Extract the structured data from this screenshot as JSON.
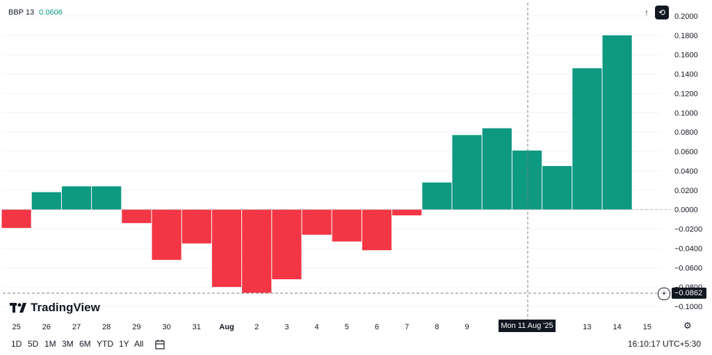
{
  "legend": {
    "name": "BBP 13",
    "value": "0.0606"
  },
  "logo": {
    "text": "TradingView"
  },
  "price_label": "−0.0862",
  "crosshair_date": "Mon 11 Aug '25",
  "timeframes": [
    "1D",
    "5D",
    "1M",
    "3M",
    "6M",
    "YTD",
    "1Y",
    "All"
  ],
  "clock": "16:10:17 UTC+5:30",
  "icons": {
    "arrow": "arrow-up-icon",
    "toggle": "toggle-icon",
    "calendar": "calendar-icon",
    "settings": "gear-icon",
    "plus": "plus-icon"
  },
  "colors": {
    "positive": "#0e9981",
    "negative": "#f23645",
    "text": "#131722"
  },
  "chart_data": {
    "type": "bar",
    "categories": [
      "25",
      "26",
      "27",
      "28",
      "29",
      "30",
      "31",
      "Aug",
      "2",
      "3",
      "4",
      "5",
      "6",
      "7",
      "8",
      "9",
      "10",
      "11",
      "12",
      "13",
      "14"
    ],
    "values": [
      -0.019,
      0.018,
      0.024,
      0.024,
      -0.014,
      -0.052,
      -0.035,
      -0.08,
      -0.086,
      -0.072,
      -0.026,
      -0.033,
      -0.042,
      -0.006,
      0.028,
      0.077,
      0.084,
      0.061,
      0.045,
      0.146,
      0.18
    ],
    "x_tick_labels": [
      "25",
      "26",
      "27",
      "28",
      "29",
      "30",
      "31",
      "Aug",
      "2",
      "3",
      "4",
      "5",
      "6",
      "7",
      "8",
      "9",
      "",
      "",
      "",
      "13",
      "14",
      "15"
    ],
    "y_ticks": [
      "0.2000",
      "0.1800",
      "0.1600",
      "0.1400",
      "0.1200",
      "0.1000",
      "0.0800",
      "0.0600",
      "0.0400",
      "0.0200",
      "0.0000",
      "−0.0200",
      "−0.0400",
      "−0.0600",
      "−0.0800",
      "−0.1000"
    ],
    "ylim": [
      -0.1,
      0.2
    ],
    "grid": true,
    "title": "BBP 13"
  }
}
